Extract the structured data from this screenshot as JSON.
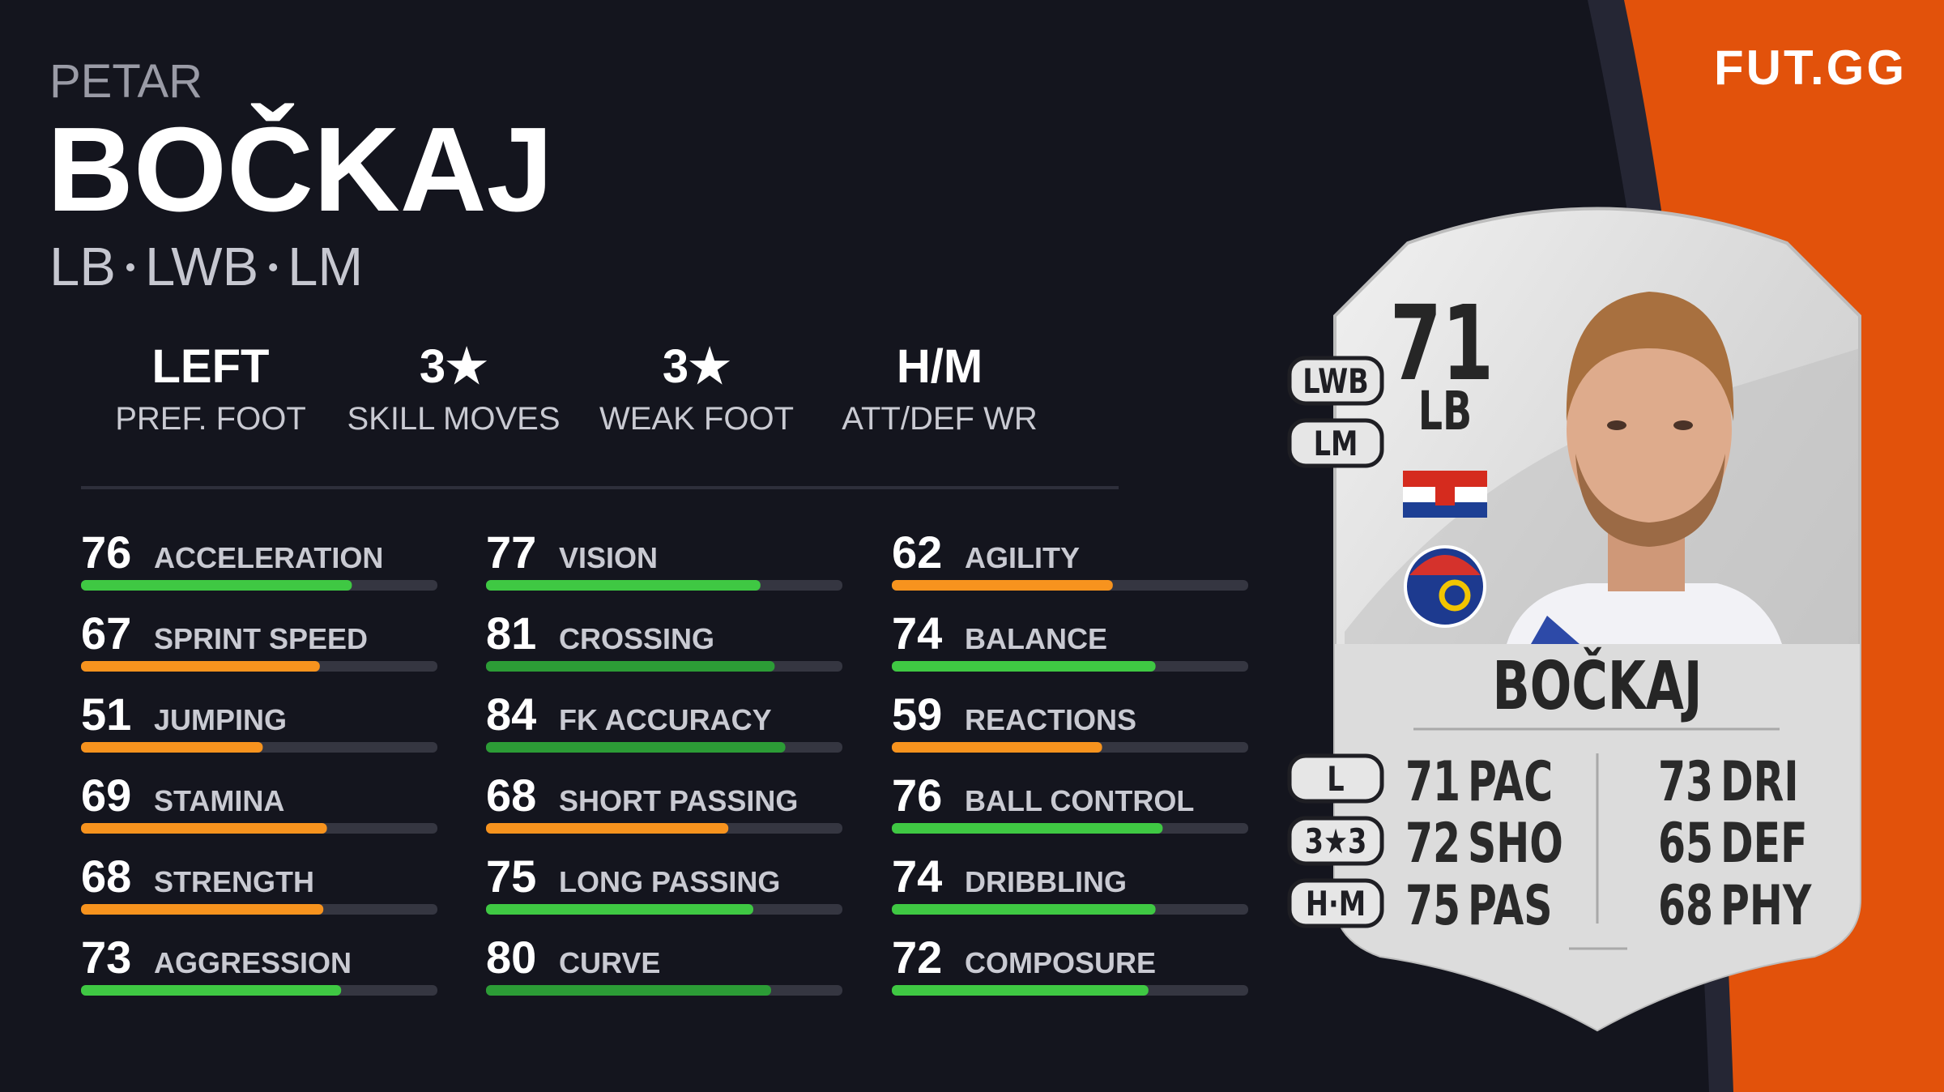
{
  "brand": "FUT.GG",
  "player": {
    "first_name": "PETAR",
    "last_name": "BOČKAJ",
    "positions": [
      "LB",
      "LWB",
      "LM"
    ]
  },
  "info": [
    {
      "value": "LEFT",
      "label": "PREF. FOOT"
    },
    {
      "value": "3★",
      "label": "SKILL MOVES"
    },
    {
      "value": "3★",
      "label": "WEAK FOOT"
    },
    {
      "value": "H/M",
      "label": "ATT/DEF WR"
    }
  ],
  "stats": [
    [
      {
        "value": 76,
        "name": "ACCELERATION"
      },
      {
        "value": 67,
        "name": "SPRINT SPEED"
      },
      {
        "value": 51,
        "name": "JUMPING"
      },
      {
        "value": 69,
        "name": "STAMINA"
      },
      {
        "value": 68,
        "name": "STRENGTH"
      },
      {
        "value": 73,
        "name": "AGGRESSION"
      }
    ],
    [
      {
        "value": 77,
        "name": "VISION"
      },
      {
        "value": 81,
        "name": "CROSSING"
      },
      {
        "value": 84,
        "name": "FK ACCURACY"
      },
      {
        "value": 68,
        "name": "SHORT PASSING"
      },
      {
        "value": 75,
        "name": "LONG PASSING"
      },
      {
        "value": 80,
        "name": "CURVE"
      }
    ],
    [
      {
        "value": 62,
        "name": "AGILITY"
      },
      {
        "value": 74,
        "name": "BALANCE"
      },
      {
        "value": 59,
        "name": "REACTIONS"
      },
      {
        "value": 76,
        "name": "BALL CONTROL"
      },
      {
        "value": 74,
        "name": "DRIBBLING"
      },
      {
        "value": 72,
        "name": "COMPOSURE"
      }
    ]
  ],
  "card": {
    "rating": 71,
    "position": "LB",
    "alt_positions": [
      "LWB",
      "LM"
    ],
    "name": "BOČKAJ",
    "foot": "L",
    "skill_weak": "3★3",
    "work_rate": "H·M",
    "attributes": [
      {
        "value": 71,
        "label": "PAC"
      },
      {
        "value": 72,
        "label": "SHO"
      },
      {
        "value": 75,
        "label": "PAS"
      },
      {
        "value": 73,
        "label": "DRI"
      },
      {
        "value": 65,
        "label": "DEF"
      },
      {
        "value": 68,
        "label": "PHY"
      }
    ]
  }
}
